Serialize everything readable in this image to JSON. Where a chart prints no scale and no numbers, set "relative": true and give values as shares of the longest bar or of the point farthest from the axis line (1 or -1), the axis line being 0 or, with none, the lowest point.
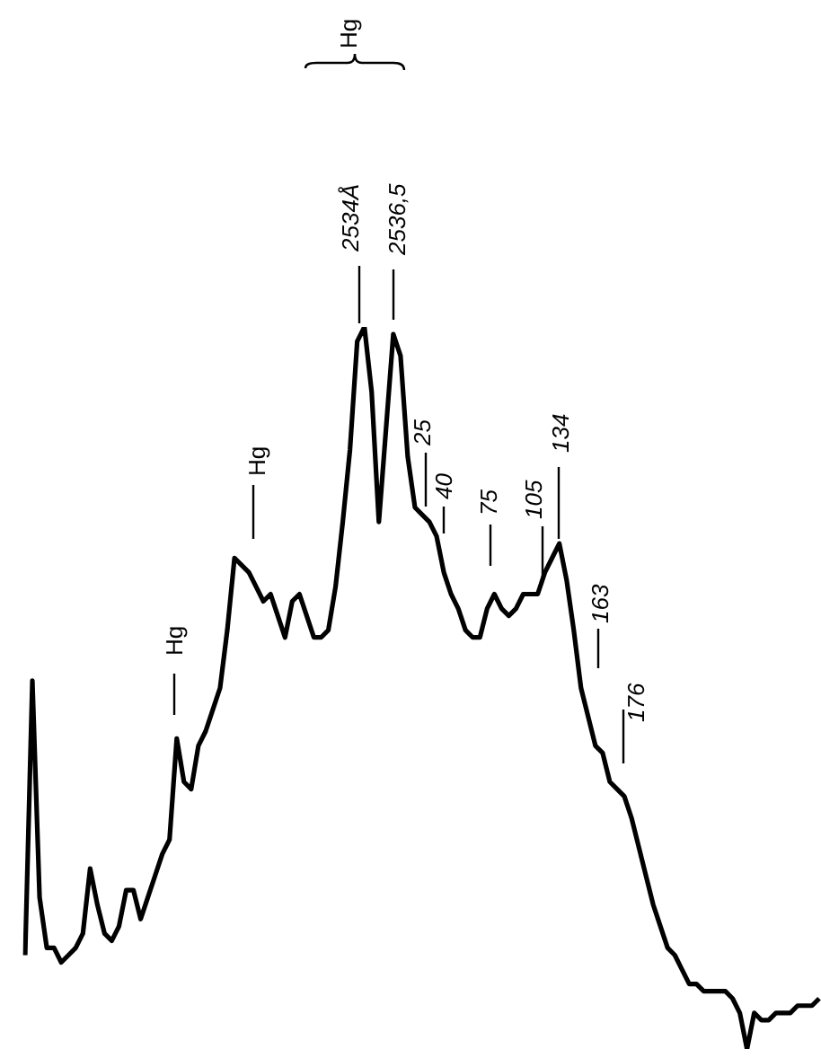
{
  "chart_data": {
    "type": "line",
    "relative": true,
    "marker": "none",
    "legend": false,
    "color": "#000000",
    "categories": [
      null,
      null,
      null,
      null,
      null,
      null,
      null,
      null,
      null,
      null,
      null,
      null,
      null,
      null,
      null,
      null,
      null,
      null,
      null,
      null,
      null,
      null,
      null,
      null,
      null,
      null,
      null,
      null,
      null,
      null,
      null,
      null,
      null,
      null,
      null,
      null,
      null,
      null,
      null,
      null,
      null,
      null,
      null,
      null,
      null,
      null,
      null,
      null,
      null,
      null,
      null,
      null,
      null,
      null,
      null,
      null,
      null,
      null,
      null,
      null,
      null,
      null,
      null,
      null,
      null,
      null,
      null,
      null,
      null,
      null,
      null,
      null,
      null,
      null,
      null,
      null,
      null,
      null,
      null,
      null,
      null,
      null,
      null,
      null,
      null,
      null,
      null,
      null,
      null,
      null,
      null,
      null,
      null,
      null,
      null,
      null,
      null,
      null,
      null,
      null,
      null,
      null,
      null,
      null,
      null,
      null,
      null,
      null,
      null,
      null,
      null
    ],
    "values": [
      0.13,
      0.51,
      0.21,
      0.14,
      0.14,
      0.12,
      0.13,
      0.14,
      0.16,
      0.25,
      0.2,
      0.16,
      0.15,
      0.17,
      0.22,
      0.22,
      0.18,
      0.21,
      0.24,
      0.27,
      0.29,
      0.43,
      0.37,
      0.36,
      0.42,
      0.44,
      0.47,
      0.5,
      0.58,
      0.68,
      0.67,
      0.66,
      0.64,
      0.62,
      0.63,
      0.6,
      0.57,
      0.62,
      0.63,
      0.6,
      0.57,
      0.57,
      0.58,
      0.64,
      0.73,
      0.83,
      0.98,
      1,
      0.91,
      0.73,
      0.86,
      0.99,
      0.96,
      0.82,
      0.75,
      0.74,
      0.73,
      0.71,
      0.66,
      0.63,
      0.61,
      0.58,
      0.57,
      0.57,
      0.61,
      0.63,
      0.61,
      0.6,
      0.61,
      0.63,
      0.63,
      0.63,
      0.66,
      0.68,
      0.7,
      0.65,
      0.58,
      0.5,
      0.46,
      0.42,
      0.41,
      0.37,
      0.36,
      0.35,
      0.32,
      0.28,
      0.24,
      0.2,
      0.17,
      0.14,
      0.13,
      0.11,
      0.09,
      0.09,
      0.08,
      0.08,
      0.08,
      0.08,
      0.07,
      0.05,
      0,
      0.05,
      0.04,
      0.04,
      0.05,
      0.05,
      0.05,
      0.06,
      0.06,
      0.06,
      0.07
    ],
    "annotations": [
      "Hg",
      "2534Å",
      "2536,5",
      "25",
      "40",
      "75",
      "105",
      "134",
      "163",
      "176",
      "Hg",
      "Hg"
    ]
  }
}
